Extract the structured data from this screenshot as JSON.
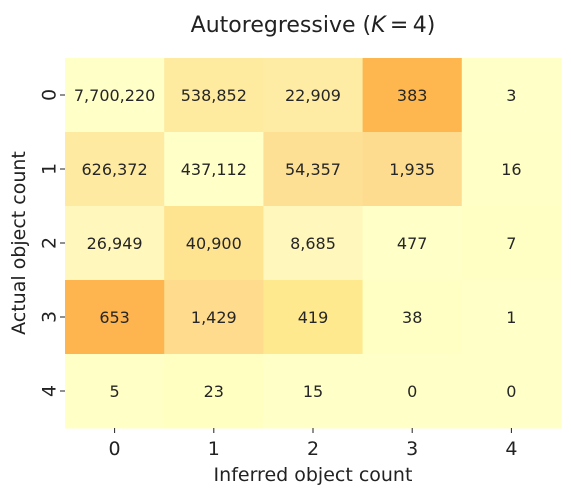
{
  "chart_data": {
    "type": "heatmap",
    "title": {
      "prefix": "Autoregressive (",
      "var": "K",
      "suffix": " = 4)"
    },
    "xlabel": "Inferred object count",
    "ylabel": "Actual object count",
    "x_categories": [
      "0",
      "1",
      "2",
      "3",
      "4"
    ],
    "y_categories": [
      "0",
      "1",
      "2",
      "3",
      "4"
    ],
    "values": [
      [
        7700220,
        538852,
        22909,
        383,
        3
      ],
      [
        626372,
        437112,
        54357,
        1935,
        16
      ],
      [
        26949,
        40900,
        8685,
        477,
        7
      ],
      [
        653,
        1429,
        419,
        38,
        1
      ],
      [
        5,
        23,
        15,
        0,
        0
      ]
    ],
    "value_labels": [
      [
        "7,700,220",
        "538,852",
        "22,909",
        "383",
        "3"
      ],
      [
        "626,372",
        "437,112",
        "54,357",
        "1,935",
        "16"
      ],
      [
        "26,949",
        "40,900",
        "8,685",
        "477",
        "7"
      ],
      [
        "653",
        "1,429",
        "419",
        "38",
        "1"
      ],
      [
        "5",
        "23",
        "15",
        "0",
        "0"
      ]
    ],
    "cell_colors": [
      [
        "#ffffc8",
        "#feeba0",
        "#feeca4",
        "#feb74f",
        "#ffffc8"
      ],
      [
        "#feeaa0",
        "#ffffc8",
        "#fee095",
        "#fedc8f",
        "#ffffc6"
      ],
      [
        "#fff7bc",
        "#fee391",
        "#fff7bc",
        "#ffffc8",
        "#ffffc4"
      ],
      [
        "#feb44f",
        "#fedb8d",
        "#fee98f",
        "#ffffc4",
        "#ffffc8"
      ],
      [
        "#ffffc6",
        "#ffffc2",
        "#ffffc8",
        "#ffffc8",
        "#ffffc8"
      ]
    ],
    "colormap": "YlOrBr (column-normalized)",
    "grid": false,
    "legend": "none"
  }
}
